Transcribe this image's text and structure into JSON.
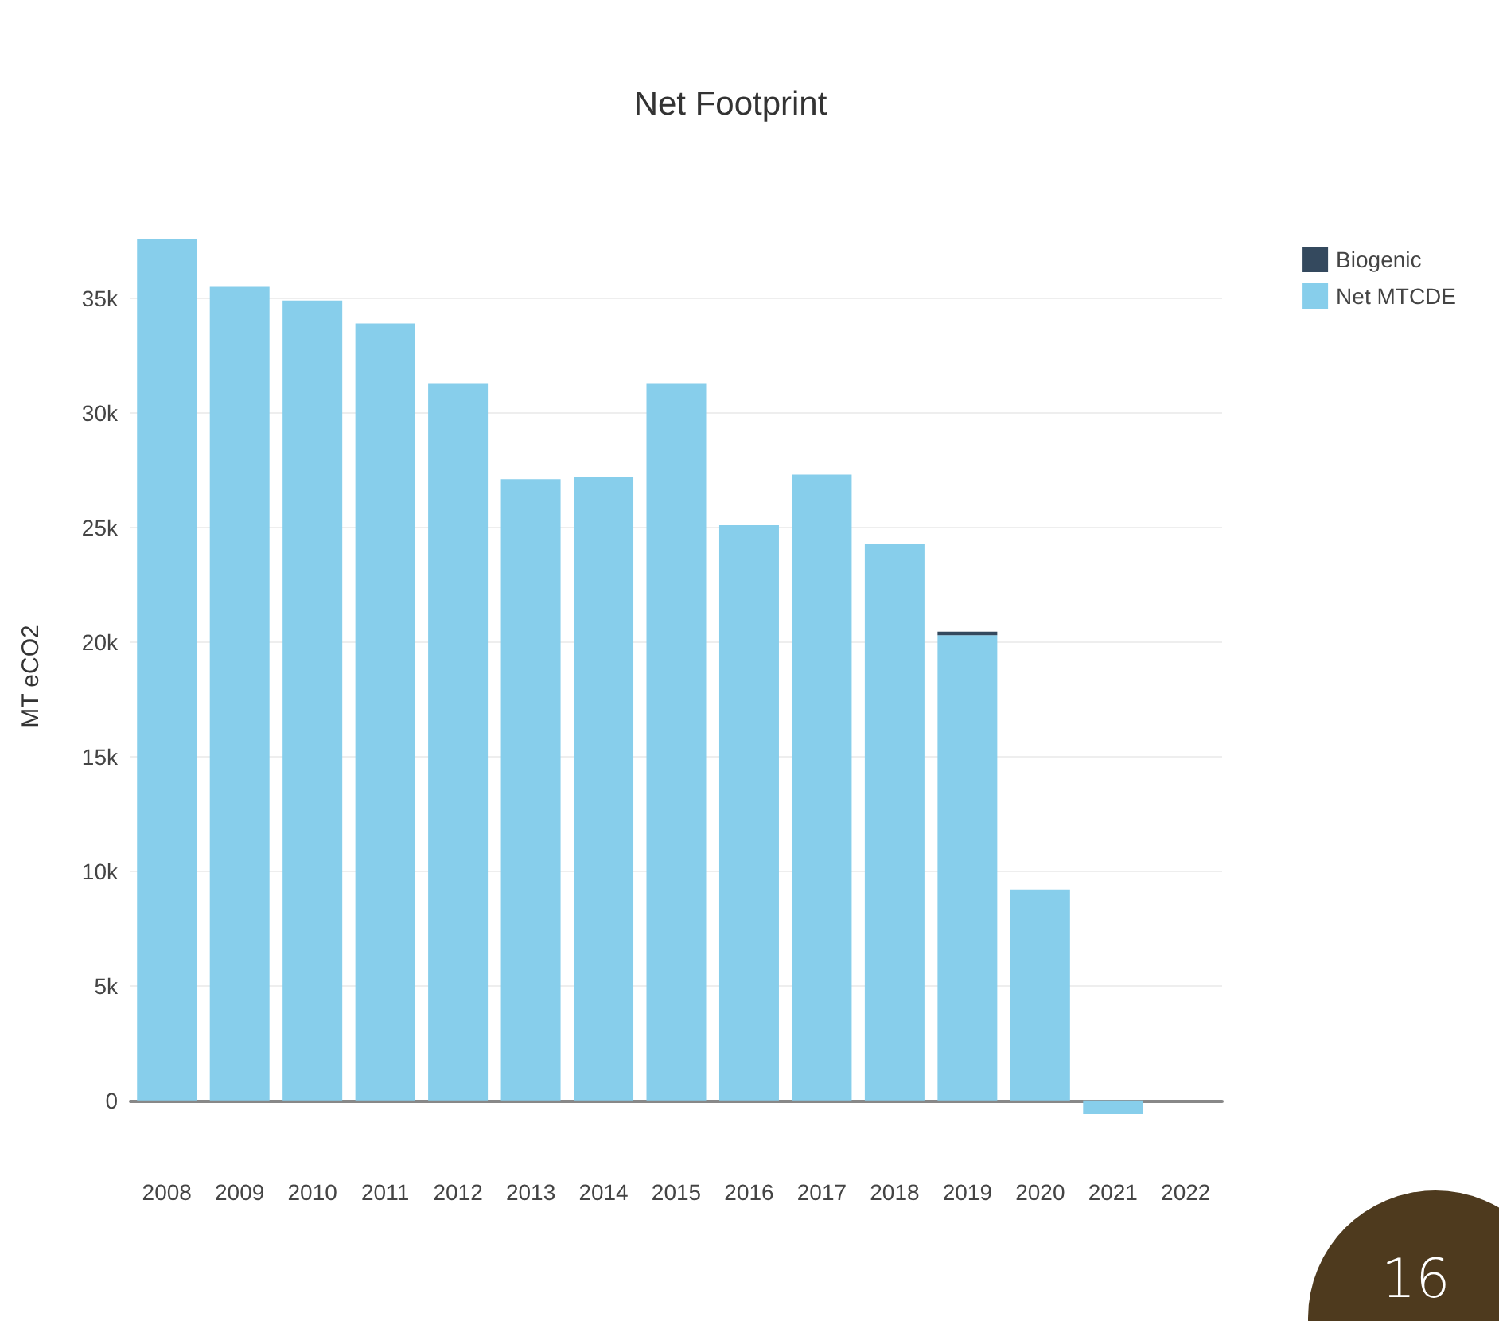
{
  "chart_data": {
    "type": "bar",
    "title": "Net Footprint",
    "ylabel": "MT eCO2",
    "categories": [
      "2008",
      "2009",
      "2010",
      "2011",
      "2012",
      "2013",
      "2014",
      "2015",
      "2016",
      "2017",
      "2018",
      "2019",
      "2020",
      "2021",
      "2022"
    ],
    "stacked": true,
    "series": [
      {
        "name": "Net MTCDE",
        "color": "#87ceeb",
        "values": [
          37600,
          35500,
          34900,
          33900,
          31300,
          27100,
          27200,
          31300,
          25100,
          27300,
          24300,
          20300,
          9200,
          -600,
          0
        ]
      },
      {
        "name": "Biogenic",
        "color": "#34495e",
        "values": [
          0,
          0,
          0,
          0,
          0,
          0,
          0,
          0,
          0,
          0,
          0,
          150,
          0,
          0,
          0
        ]
      }
    ],
    "yticks": [
      0,
      {
        "value": 5000,
        "label": "5k"
      },
      {
        "value": 10000,
        "label": "10k"
      },
      {
        "value": 15000,
        "label": "15k"
      },
      {
        "value": 20000,
        "label": "20k"
      },
      {
        "value": 25000,
        "label": "25k"
      },
      {
        "value": 30000,
        "label": "30k"
      },
      {
        "value": 35000,
        "label": "35k"
      }
    ],
    "ylim": [
      -600,
      37600
    ],
    "grid": "y",
    "legend": "top right",
    "annotations": [
      "16"
    ]
  }
}
